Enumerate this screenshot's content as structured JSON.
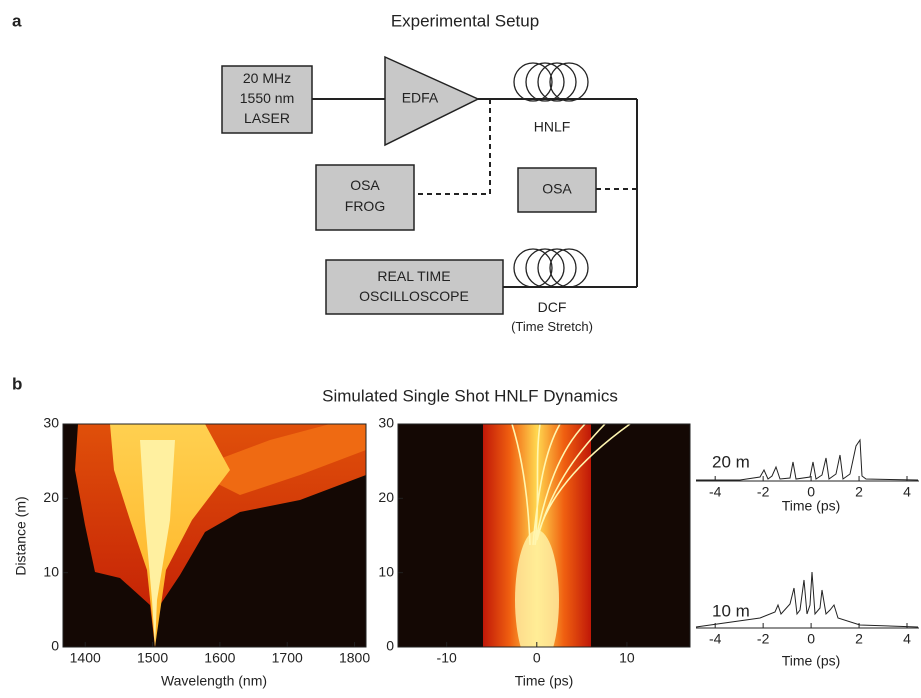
{
  "panel_a": {
    "label": "a",
    "title": "Experimental Setup",
    "laser": [
      "20 MHz",
      "1550 nm",
      "LASER"
    ],
    "edfa": "EDFA",
    "hnlf": "HNLF",
    "osa_frog": [
      "OSA",
      "FROG"
    ],
    "osa": "OSA",
    "oscilloscope": [
      "REAL TIME",
      "OSCILLOSCOPE"
    ],
    "dcf": [
      "DCF",
      "(Time Stretch)"
    ]
  },
  "panel_b": {
    "label": "b",
    "title": "Simulated Single Shot HNLF Dynamics",
    "spectrum": {
      "xlabel": "Wavelength (nm)",
      "ylabel": "Distance (m)",
      "xlim": [
        1367,
        1817
      ],
      "xticks": [
        1400,
        1500,
        1600,
        1700,
        1800
      ],
      "ylim": [
        0,
        30
      ],
      "yticks": [
        0,
        10,
        20,
        30
      ]
    },
    "temporal": {
      "xlabel": "Time (ps)",
      "xlim": [
        -15.4,
        17
      ],
      "xticks": [
        -10,
        0,
        10
      ],
      "ylim": [
        0,
        30
      ],
      "yticks": [
        0,
        10,
        20,
        30
      ]
    },
    "profiles": [
      {
        "label": "20 m",
        "xlabel": "Time (ps)",
        "xlim": [
          -4.8,
          4.5
        ],
        "xticks": [
          -4,
          -2,
          0,
          2,
          4
        ]
      },
      {
        "label": "10 m",
        "xlabel": "Time (ps)",
        "xlim": [
          -4.8,
          4.5
        ],
        "xticks": [
          -4,
          -2,
          0,
          2,
          4
        ]
      }
    ]
  }
}
